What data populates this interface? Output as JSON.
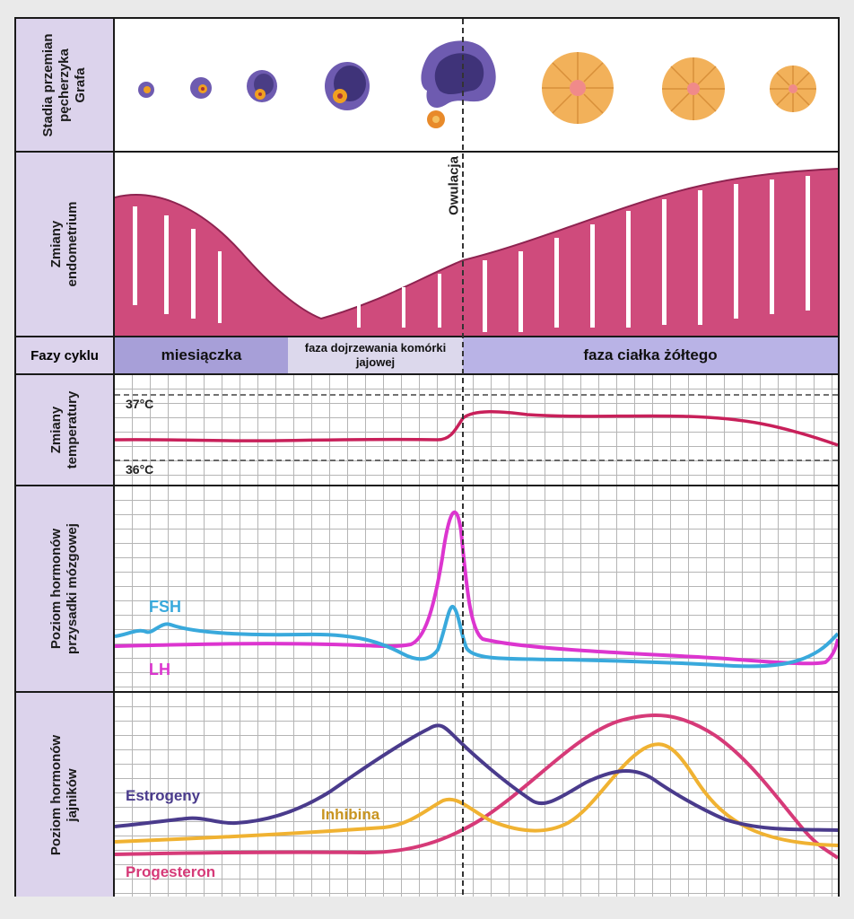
{
  "rows": {
    "follicle": {
      "label_lines": [
        "Stadia przemian",
        "pęcherzyka",
        "Grafa"
      ]
    },
    "endometrium": {
      "label_lines": [
        "Zmiany",
        "endometrium"
      ]
    },
    "phases": {
      "label": "Fazy cyklu",
      "items": [
        "miesiączka",
        "faza dojrzewania komórki jajowej",
        "faza ciałka żółtego"
      ]
    },
    "temperature": {
      "label_lines": [
        "Zmiany",
        "temperatury"
      ],
      "high": "37°C",
      "low": "36°C"
    },
    "pituitary": {
      "label_lines": [
        "Poziom hormonów",
        "przysadki mózgowej"
      ],
      "series": [
        "FSH",
        "LH"
      ]
    },
    "ovarian": {
      "label_lines": [
        "Poziom hormonów",
        "jajników"
      ],
      "series": [
        "Estrogeny",
        "Inhibina",
        "Progesteron"
      ]
    }
  },
  "ovulation_label": "Owulacja",
  "colors": {
    "label_bg": "#dcd3ec",
    "menstruation": "#a79fd8",
    "maturation": "#dcd8ec",
    "luteal": "#b9b3e6",
    "temperature": "#c8205a",
    "fsh": "#39a9dc",
    "lh": "#dc35cf",
    "estrogen": "#4a3b8c",
    "inhibin": "#f0b232",
    "progesterone": "#d63a78",
    "endometrium": "#cf4b7c",
    "follicle": "#6e5bb0",
    "corpus_luteum": "#f2b15a"
  },
  "icons": [
    "follicle-icon",
    "oocyte-icon",
    "corpus-luteum-icon"
  ]
}
